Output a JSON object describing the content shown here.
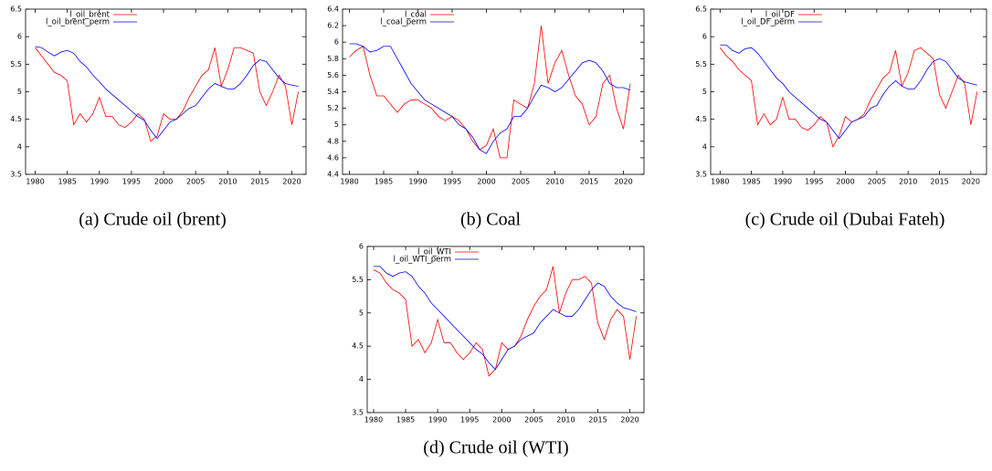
{
  "chart_data": [
    {
      "type": "line",
      "caption": "(a) Crude oil (brent)",
      "x": [
        1980,
        1981,
        1982,
        1983,
        1984,
        1985,
        1986,
        1987,
        1988,
        1989,
        1990,
        1991,
        1992,
        1993,
        1994,
        1995,
        1996,
        1997,
        1998,
        1999,
        2000,
        2001,
        2002,
        2003,
        2004,
        2005,
        2006,
        2007,
        2008,
        2009,
        2010,
        2011,
        2012,
        2013,
        2014,
        2015,
        2016,
        2017,
        2018,
        2019,
        2020,
        2021
      ],
      "series": [
        {
          "name": "l_oil_brent",
          "color": "#ff0000",
          "values": [
            5.8,
            5.65,
            5.5,
            5.35,
            5.3,
            5.2,
            4.4,
            4.6,
            4.45,
            4.6,
            4.9,
            4.55,
            4.55,
            4.4,
            4.35,
            4.45,
            4.6,
            4.5,
            4.1,
            4.2,
            4.6,
            4.5,
            4.5,
            4.65,
            4.9,
            5.1,
            5.3,
            5.4,
            5.8,
            5.1,
            5.4,
            5.8,
            5.8,
            5.75,
            5.7,
            5.0,
            4.75,
            5.0,
            5.3,
            5.1,
            4.4,
            5.0
          ]
        },
        {
          "name": "l_oil_brent_perm",
          "color": "#0000ff",
          "values": [
            5.82,
            5.8,
            5.72,
            5.65,
            5.72,
            5.75,
            5.7,
            5.55,
            5.45,
            5.3,
            5.18,
            5.05,
            4.95,
            4.85,
            4.75,
            4.65,
            4.55,
            4.48,
            4.3,
            4.15,
            4.3,
            4.45,
            4.5,
            4.6,
            4.7,
            4.75,
            4.9,
            5.05,
            5.15,
            5.1,
            5.05,
            5.05,
            5.15,
            5.3,
            5.48,
            5.58,
            5.55,
            5.4,
            5.25,
            5.15,
            5.12,
            5.1
          ]
        }
      ],
      "xlim": [
        1978.5,
        2022.2
      ],
      "ylim": [
        3.5,
        6.5
      ],
      "xticks": [
        1980,
        1985,
        1990,
        1995,
        2000,
        2005,
        2010,
        2015,
        2020
      ],
      "yticks": [
        3.5,
        4,
        4.5,
        5,
        5.5,
        6,
        6.5
      ]
    },
    {
      "type": "line",
      "caption": "(b) Coal",
      "x": [
        1980,
        1981,
        1982,
        1983,
        1984,
        1985,
        1986,
        1987,
        1988,
        1989,
        1990,
        1991,
        1992,
        1993,
        1994,
        1995,
        1996,
        1997,
        1998,
        1999,
        2000,
        2001,
        2002,
        2003,
        2004,
        2005,
        2006,
        2007,
        2008,
        2009,
        2010,
        2011,
        2012,
        2013,
        2014,
        2015,
        2016,
        2017,
        2018,
        2019,
        2020,
        2021
      ],
      "series": [
        {
          "name": "l_coal",
          "color": "#ff0000",
          "values": [
            5.82,
            5.9,
            5.95,
            5.6,
            5.35,
            5.35,
            5.25,
            5.15,
            5.25,
            5.3,
            5.3,
            5.25,
            5.2,
            5.1,
            5.05,
            5.1,
            5.05,
            4.95,
            4.8,
            4.7,
            4.75,
            4.95,
            4.6,
            4.6,
            5.3,
            5.25,
            5.2,
            5.5,
            6.2,
            5.5,
            5.75,
            5.9,
            5.6,
            5.35,
            5.25,
            5.0,
            5.1,
            5.5,
            5.6,
            5.2,
            4.95,
            5.5
          ]
        },
        {
          "name": "l_coal_perm",
          "color": "#0000ff",
          "values": [
            5.98,
            5.98,
            5.95,
            5.88,
            5.9,
            5.95,
            5.95,
            5.8,
            5.65,
            5.5,
            5.4,
            5.3,
            5.25,
            5.2,
            5.15,
            5.1,
            5.0,
            4.95,
            4.85,
            4.7,
            4.65,
            4.8,
            4.9,
            4.95,
            5.1,
            5.1,
            5.2,
            5.35,
            5.48,
            5.45,
            5.4,
            5.45,
            5.55,
            5.65,
            5.75,
            5.78,
            5.75,
            5.65,
            5.5,
            5.45,
            5.45,
            5.42
          ]
        }
      ],
      "xlim": [
        1979,
        2023
      ],
      "ylim": [
        4.4,
        6.4
      ],
      "xticks": [
        1980,
        1985,
        1990,
        1995,
        2000,
        2005,
        2010,
        2015,
        2020
      ],
      "yticks": [
        4.4,
        4.6,
        4.8,
        5,
        5.2,
        5.4,
        5.6,
        5.8,
        6,
        6.2,
        6.4
      ]
    },
    {
      "type": "line",
      "caption": "(c) Crude oil (Dubai Fateh)",
      "x": [
        1980,
        1981,
        1982,
        1983,
        1984,
        1985,
        1986,
        1987,
        1988,
        1989,
        1990,
        1991,
        1992,
        1993,
        1994,
        1995,
        1996,
        1997,
        1998,
        1999,
        2000,
        2001,
        2002,
        2003,
        2004,
        2005,
        2006,
        2007,
        2008,
        2009,
        2010,
        2011,
        2012,
        2013,
        2014,
        2015,
        2016,
        2017,
        2018,
        2019,
        2020,
        2021
      ],
      "series": [
        {
          "name": "l_oil_DF",
          "color": "#ff0000",
          "values": [
            5.8,
            5.65,
            5.55,
            5.4,
            5.3,
            5.2,
            4.4,
            4.6,
            4.4,
            4.5,
            4.9,
            4.5,
            4.5,
            4.35,
            4.3,
            4.4,
            4.55,
            4.45,
            4.0,
            4.2,
            4.55,
            4.45,
            4.5,
            4.6,
            4.85,
            5.05,
            5.25,
            5.35,
            5.75,
            5.1,
            5.35,
            5.75,
            5.8,
            5.7,
            5.6,
            4.95,
            4.7,
            5.0,
            5.3,
            5.15,
            4.4,
            5.0
          ]
        },
        {
          "name": "l_oil_DF_perm",
          "color": "#0000ff",
          "values": [
            5.85,
            5.85,
            5.75,
            5.7,
            5.78,
            5.8,
            5.7,
            5.55,
            5.4,
            5.25,
            5.15,
            5.0,
            4.9,
            4.8,
            4.7,
            4.6,
            4.5,
            4.45,
            4.3,
            4.15,
            4.3,
            4.45,
            4.5,
            4.55,
            4.7,
            4.75,
            4.95,
            5.1,
            5.2,
            5.1,
            5.05,
            5.05,
            5.2,
            5.4,
            5.55,
            5.6,
            5.55,
            5.4,
            5.25,
            5.18,
            5.15,
            5.12
          ]
        }
      ],
      "xlim": [
        1978.5,
        2022.5
      ],
      "ylim": [
        3.5,
        6.5
      ],
      "xticks": [
        1980,
        1985,
        1990,
        1995,
        2000,
        2005,
        2010,
        2015,
        2020
      ],
      "yticks": [
        3.5,
        4,
        4.5,
        5,
        5.5,
        6,
        6.5
      ]
    },
    {
      "type": "line",
      "caption": "(d) Crude oil (WTI)",
      "x": [
        1980,
        1981,
        1982,
        1983,
        1984,
        1985,
        1986,
        1987,
        1988,
        1989,
        1990,
        1991,
        1992,
        1993,
        1994,
        1995,
        1996,
        1997,
        1998,
        1999,
        2000,
        2001,
        2002,
        2003,
        2004,
        2005,
        2006,
        2007,
        2008,
        2009,
        2010,
        2011,
        2012,
        2013,
        2014,
        2015,
        2016,
        2017,
        2018,
        2019,
        2020,
        2021
      ],
      "series": [
        {
          "name": "l_oil_WTI",
          "color": "#ff0000",
          "values": [
            5.65,
            5.6,
            5.45,
            5.35,
            5.3,
            5.2,
            4.5,
            4.6,
            4.4,
            4.55,
            4.9,
            4.55,
            4.55,
            4.4,
            4.3,
            4.4,
            4.55,
            4.45,
            4.05,
            4.15,
            4.55,
            4.45,
            4.5,
            4.65,
            4.9,
            5.1,
            5.25,
            5.35,
            5.7,
            5.0,
            5.3,
            5.5,
            5.5,
            5.55,
            5.45,
            4.85,
            4.6,
            4.9,
            5.05,
            4.95,
            4.3,
            4.95
          ]
        },
        {
          "name": "l_oil_WTI_perm",
          "color": "#0000ff",
          "values": [
            5.7,
            5.7,
            5.6,
            5.55,
            5.6,
            5.62,
            5.55,
            5.4,
            5.3,
            5.15,
            5.05,
            4.95,
            4.85,
            4.75,
            4.65,
            4.55,
            4.45,
            4.38,
            4.25,
            4.15,
            4.3,
            4.45,
            4.5,
            4.6,
            4.65,
            4.7,
            4.85,
            4.95,
            5.05,
            5.0,
            4.95,
            4.95,
            5.05,
            5.2,
            5.35,
            5.45,
            5.4,
            5.25,
            5.15,
            5.08,
            5.05,
            5.02
          ]
        }
      ],
      "xlim": [
        1979,
        2022.2
      ],
      "ylim": [
        3.5,
        6
      ],
      "xticks": [
        1980,
        1985,
        1990,
        1995,
        2000,
        2005,
        2010,
        2015,
        2020
      ],
      "yticks": [
        3.5,
        4,
        4.5,
        5,
        5.5,
        6
      ]
    }
  ]
}
